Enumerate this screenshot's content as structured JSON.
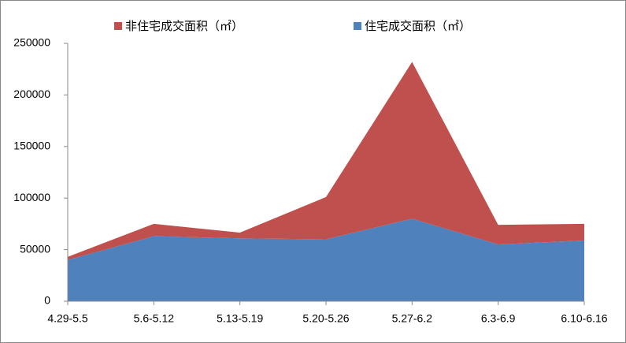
{
  "chart_data": {
    "type": "stacked-area",
    "categories": [
      "4.29-5.5",
      "5.6-5.12",
      "5.13-5.19",
      "5.20-5.26",
      "5.27-6.2",
      "6.3-6.9",
      "6.10-6.16"
    ],
    "series": [
      {
        "name": "住宅成交面积（㎡）",
        "color": "#4f81bd",
        "values": [
          40000,
          63000,
          61000,
          60000,
          80000,
          55000,
          59000
        ]
      },
      {
        "name": "非住宅成交面积（㎡）",
        "color": "#c0504d",
        "values": [
          3000,
          12000,
          5500,
          41000,
          152000,
          19000,
          16000
        ]
      }
    ],
    "ylim": [
      0,
      250000
    ],
    "yticks": [
      0,
      50000,
      100000,
      150000,
      200000,
      250000
    ],
    "grid": false,
    "legend": "top"
  }
}
